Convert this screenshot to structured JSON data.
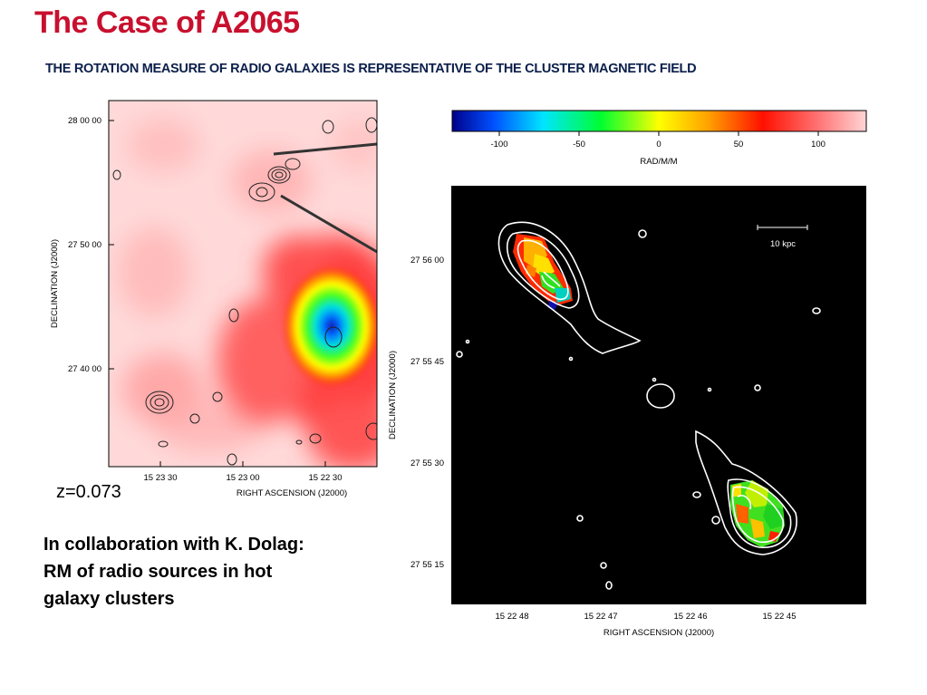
{
  "slide": {
    "title": "The Case of A2065",
    "subtitle": "THE ROTATION MEASURE OF RADIO GALAXIES IS REPRESENTATIVE  OF THE CLUSTER MAGNETIC FIELD",
    "redshift_label": "z=0.073",
    "collab_lines": [
      "In collaboration with K. Dolag:",
      "RM of radio sources in hot",
      "galaxy clusters"
    ]
  },
  "left_map": {
    "dec_ticks": [
      "28 00 00",
      "27 50 00",
      "27 40 00"
    ],
    "ra_ticks": [
      "15 23 30",
      "15 23 00",
      "15 22 30"
    ],
    "ylabel": "DECLINATION  (J2000)",
    "xlabel": "RIGHT ASCENSION  (J2000)"
  },
  "colorbar": {
    "ticks": [
      "-100",
      "-50",
      "0",
      "50",
      "100"
    ],
    "label": "RAD/M/M",
    "range": [
      -130,
      130
    ],
    "colors": [
      "#00008b",
      "#0060ff",
      "#00e5ff",
      "#00ff00",
      "#ffff00",
      "#ffa500",
      "#ff0000",
      "#ff9090",
      "#ffd8d8"
    ]
  },
  "right_map": {
    "dec_ticks": [
      "27 56 00",
      "27 55 45",
      "27 55 30",
      "27 55 15"
    ],
    "ra_ticks": [
      "15 22 48",
      "15 22 47",
      "15 22 46",
      "15 22 45"
    ],
    "ylabel": "DECLINATION  (J2000)",
    "xlabel": "RIGHT ASCENSION  (J2000)",
    "scale_label": "10 kpc"
  }
}
